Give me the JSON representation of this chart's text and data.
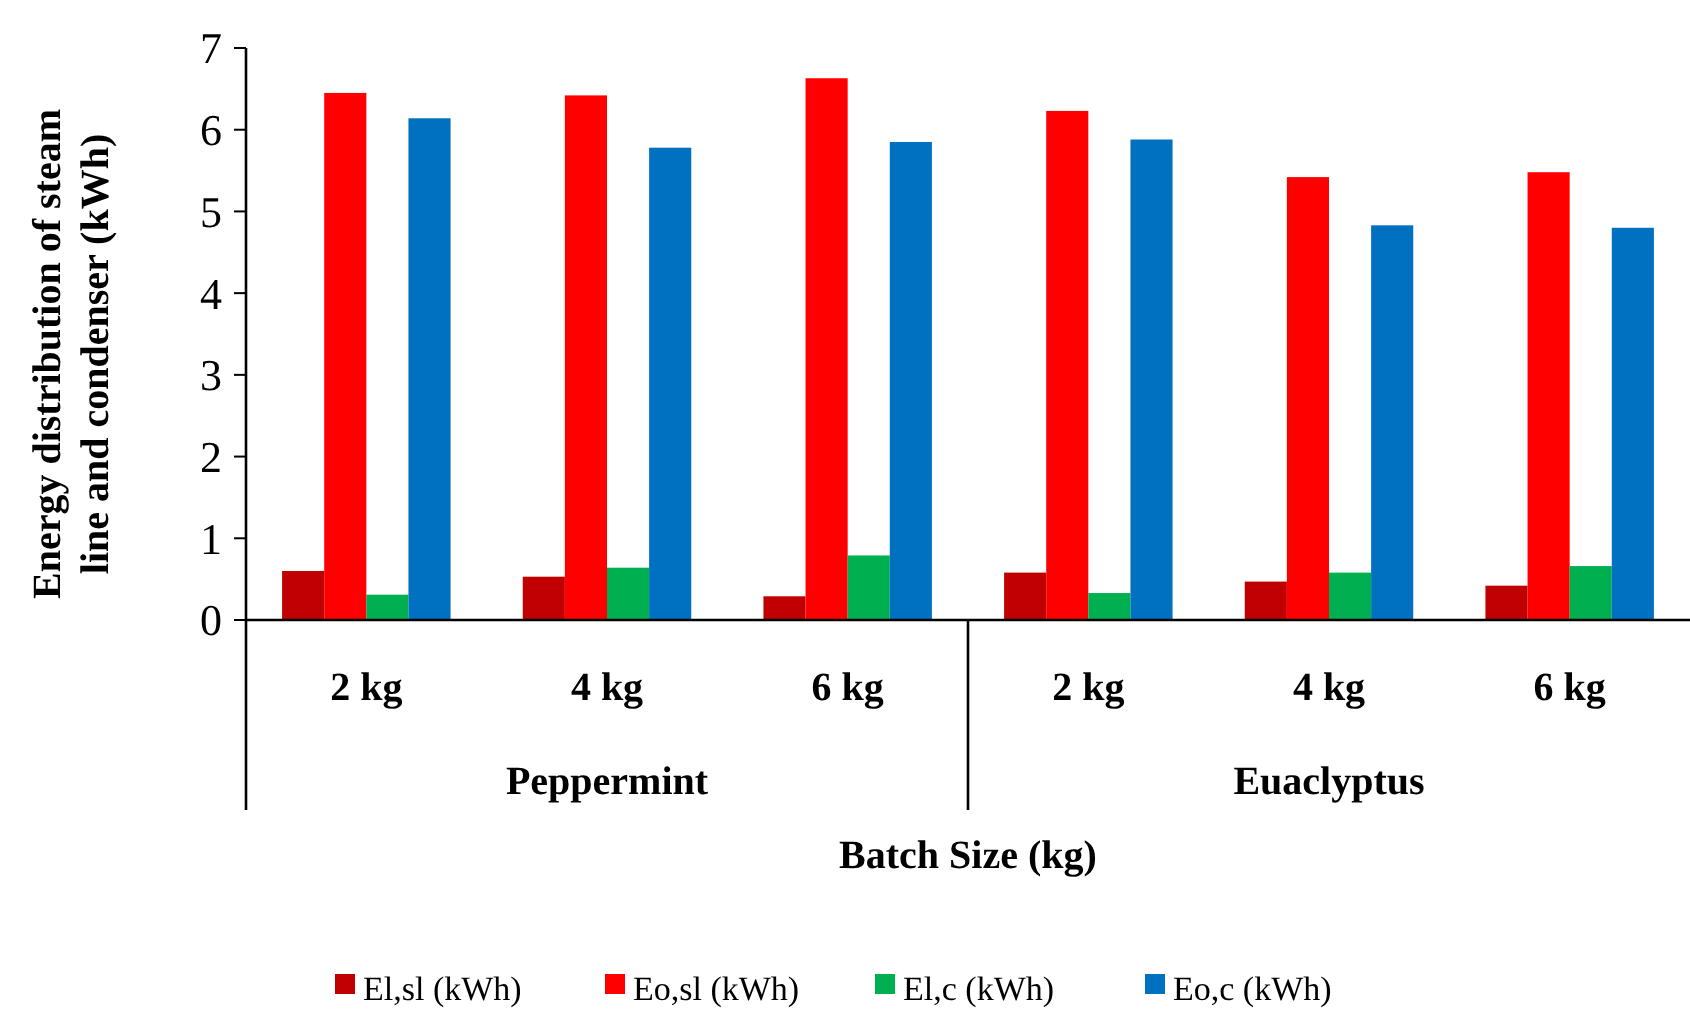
{
  "chart_data": {
    "type": "bar",
    "xlabel": "Batch Size (kg)",
    "ylabel": "Energy distribution of steam line and condenser (kWh)",
    "categories": [
      "2 kg",
      "4 kg",
      "6 kg",
      "2 kg",
      "4 kg",
      "6 kg"
    ],
    "annotations": [
      "Peppermint",
      "Euaclyptus"
    ],
    "series": [
      {
        "name": "El,sl (kWh)",
        "color": "#c00000",
        "values": [
          0.6,
          0.53,
          0.29,
          0.58,
          0.47,
          0.42
        ]
      },
      {
        "name": "Eo,sl (kWh)",
        "color": "#ff0000",
        "values": [
          6.45,
          6.42,
          6.63,
          6.23,
          5.42,
          5.48
        ]
      },
      {
        "name": "El,c (kWh)",
        "color": "#00b050",
        "values": [
          0.31,
          0.64,
          0.79,
          0.33,
          0.58,
          0.66
        ]
      },
      {
        "name": "Eo,c (kWh)",
        "color": "#0070c0",
        "values": [
          6.14,
          5.78,
          5.85,
          5.88,
          4.83,
          4.8
        ]
      }
    ],
    "ylim": [
      0,
      7
    ],
    "yticks": [
      0,
      1,
      2,
      3,
      4,
      5,
      6,
      7
    ],
    "grid": false,
    "legend": "bottom"
  }
}
